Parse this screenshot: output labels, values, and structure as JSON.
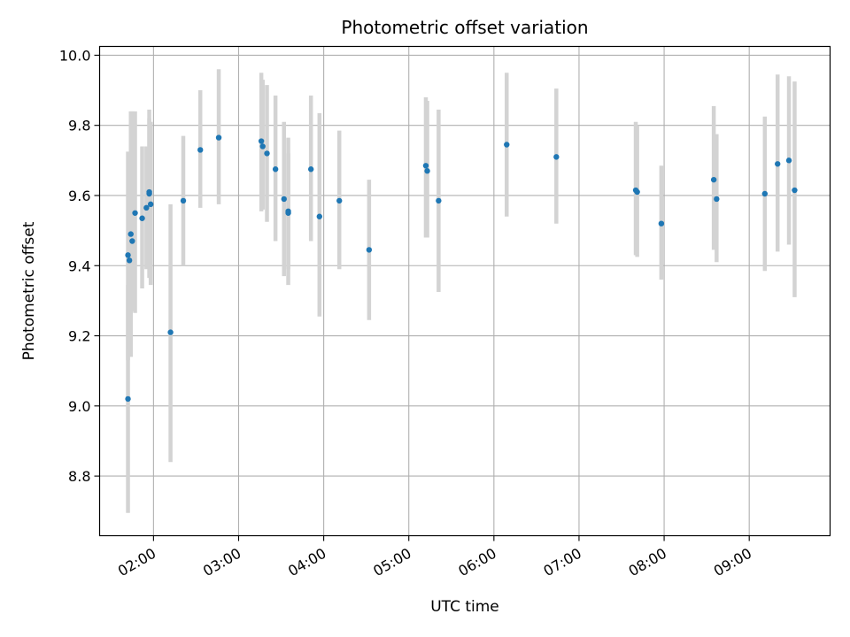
{
  "chart_data": {
    "type": "scatter",
    "title": "Photometric offset variation",
    "xlabel": "UTC time",
    "ylabel": "Photometric offset",
    "x_unit": "UTC time (HH:MM)",
    "xlim": [
      "01:22",
      "09:57"
    ],
    "ylim": [
      8.63,
      10.025
    ],
    "grid": true,
    "x_ticks": [
      "02:00",
      "03:00",
      "04:00",
      "05:00",
      "06:00",
      "07:00",
      "08:00",
      "09:00"
    ],
    "y_ticks": [
      "8.8",
      "9.0",
      "9.2",
      "9.4",
      "9.6",
      "9.8",
      "10.0"
    ],
    "colors": {
      "point": "#1f77b4",
      "errorbar": "#d3d3d3",
      "grid": "#b0b0b0",
      "axes": "#000000"
    },
    "points": [
      {
        "x": "01:42",
        "y": 9.02,
        "lo": 8.695,
        "hi": 9.345
      },
      {
        "x": "01:42",
        "y": 9.43,
        "lo": 9.13,
        "hi": 9.725
      },
      {
        "x": "01:43",
        "y": 9.415,
        "lo": 9.16,
        "hi": 9.68
      },
      {
        "x": "01:44",
        "y": 9.49,
        "lo": 9.14,
        "hi": 9.84
      },
      {
        "x": "01:45",
        "y": 9.47,
        "lo": 9.27,
        "hi": 9.84
      },
      {
        "x": "01:47",
        "y": 9.55,
        "lo": 9.265,
        "hi": 9.84
      },
      {
        "x": "01:52",
        "y": 9.535,
        "lo": 9.335,
        "hi": 9.74
      },
      {
        "x": "01:55",
        "y": 9.565,
        "lo": 9.39,
        "hi": 9.74
      },
      {
        "x": "01:57",
        "y": 9.605,
        "lo": 9.365,
        "hi": 9.845
      },
      {
        "x": "01:57",
        "y": 9.61,
        "lo": 9.4,
        "hi": 9.82
      },
      {
        "x": "01:58",
        "y": 9.575,
        "lo": 9.345,
        "hi": 9.81
      },
      {
        "x": "02:12",
        "y": 9.21,
        "lo": 8.84,
        "hi": 9.575
      },
      {
        "x": "02:21",
        "y": 9.585,
        "lo": 9.4,
        "hi": 9.77
      },
      {
        "x": "02:33",
        "y": 9.73,
        "lo": 9.565,
        "hi": 9.9
      },
      {
        "x": "02:46",
        "y": 9.765,
        "lo": 9.575,
        "hi": 9.96
      },
      {
        "x": "03:16",
        "y": 9.755,
        "lo": 9.555,
        "hi": 9.95
      },
      {
        "x": "03:17",
        "y": 9.74,
        "lo": 9.56,
        "hi": 9.93
      },
      {
        "x": "03:20",
        "y": 9.72,
        "lo": 9.525,
        "hi": 9.915
      },
      {
        "x": "03:26",
        "y": 9.675,
        "lo": 9.47,
        "hi": 9.885
      },
      {
        "x": "03:32",
        "y": 9.59,
        "lo": 9.37,
        "hi": 9.81
      },
      {
        "x": "03:35",
        "y": 9.555,
        "lo": 9.345,
        "hi": 9.765
      },
      {
        "x": "03:35",
        "y": 9.55,
        "lo": 9.39,
        "hi": 9.72
      },
      {
        "x": "03:51",
        "y": 9.675,
        "lo": 9.47,
        "hi": 9.885
      },
      {
        "x": "03:57",
        "y": 9.54,
        "lo": 9.255,
        "hi": 9.835
      },
      {
        "x": "04:11",
        "y": 9.585,
        "lo": 9.39,
        "hi": 9.785
      },
      {
        "x": "04:32",
        "y": 9.445,
        "lo": 9.245,
        "hi": 9.645
      },
      {
        "x": "05:12",
        "y": 9.685,
        "lo": 9.48,
        "hi": 9.88
      },
      {
        "x": "05:13",
        "y": 9.67,
        "lo": 9.48,
        "hi": 9.87
      },
      {
        "x": "05:21",
        "y": 9.585,
        "lo": 9.325,
        "hi": 9.845
      },
      {
        "x": "06:09",
        "y": 9.745,
        "lo": 9.54,
        "hi": 9.95
      },
      {
        "x": "06:44",
        "y": 9.71,
        "lo": 9.52,
        "hi": 9.905
      },
      {
        "x": "07:40",
        "y": 9.615,
        "lo": 9.43,
        "hi": 9.81
      },
      {
        "x": "07:41",
        "y": 9.61,
        "lo": 9.425,
        "hi": 9.8
      },
      {
        "x": "07:58",
        "y": 9.52,
        "lo": 9.36,
        "hi": 9.685
      },
      {
        "x": "08:35",
        "y": 9.645,
        "lo": 9.445,
        "hi": 9.855
      },
      {
        "x": "08:37",
        "y": 9.59,
        "lo": 9.41,
        "hi": 9.775
      },
      {
        "x": "09:11",
        "y": 9.605,
        "lo": 9.385,
        "hi": 9.825
      },
      {
        "x": "09:20",
        "y": 9.69,
        "lo": 9.44,
        "hi": 9.945
      },
      {
        "x": "09:28",
        "y": 9.7,
        "lo": 9.46,
        "hi": 9.94
      },
      {
        "x": "09:32",
        "y": 9.615,
        "lo": 9.31,
        "hi": 9.925
      }
    ]
  }
}
